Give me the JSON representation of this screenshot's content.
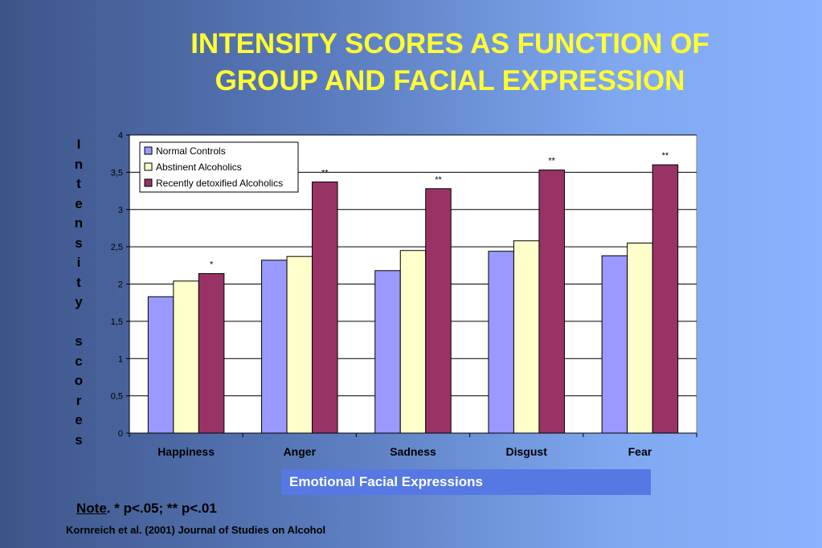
{
  "title_lines": [
    "INTENSITY SCORES AS FUNCTION OF",
    "GROUP AND FACIAL EXPRESSION"
  ],
  "note": {
    "label": "Note",
    "text": ". * p<.05; ** p<.01"
  },
  "citation": "Kornreich et al. (2001) Journal of Studies on Alcohol",
  "chart_data": {
    "type": "bar",
    "title": "INTENSITY SCORES AS FUNCTION OF GROUP AND FACIAL EXPRESSION",
    "xlabel": "Emotional Facial Expressions",
    "ylabel": "Intensity scores",
    "categories": [
      "Happiness",
      "Anger",
      "Sadness",
      "Disgust",
      "Fear"
    ],
    "ylim": [
      0,
      4
    ],
    "yticks": [
      "0",
      "0,5",
      "1",
      "1,5",
      "2",
      "2,5",
      "3",
      "3,5",
      "4"
    ],
    "grid": true,
    "legend_position": "top-left",
    "series": [
      {
        "name": "Normal Controls",
        "color": "#9999ff",
        "values": [
          1.83,
          2.32,
          2.18,
          2.44,
          2.38
        ]
      },
      {
        "name": "Abstinent Alcoholics",
        "color": "#ffffcc",
        "values": [
          2.04,
          2.37,
          2.45,
          2.58,
          2.55
        ]
      },
      {
        "name": "Recently detoxified Alcoholics",
        "color": "#993366",
        "values": [
          2.14,
          3.37,
          3.28,
          3.53,
          3.6
        ]
      }
    ],
    "annotations": [
      "*",
      "**",
      "**",
      "**",
      "**"
    ]
  }
}
